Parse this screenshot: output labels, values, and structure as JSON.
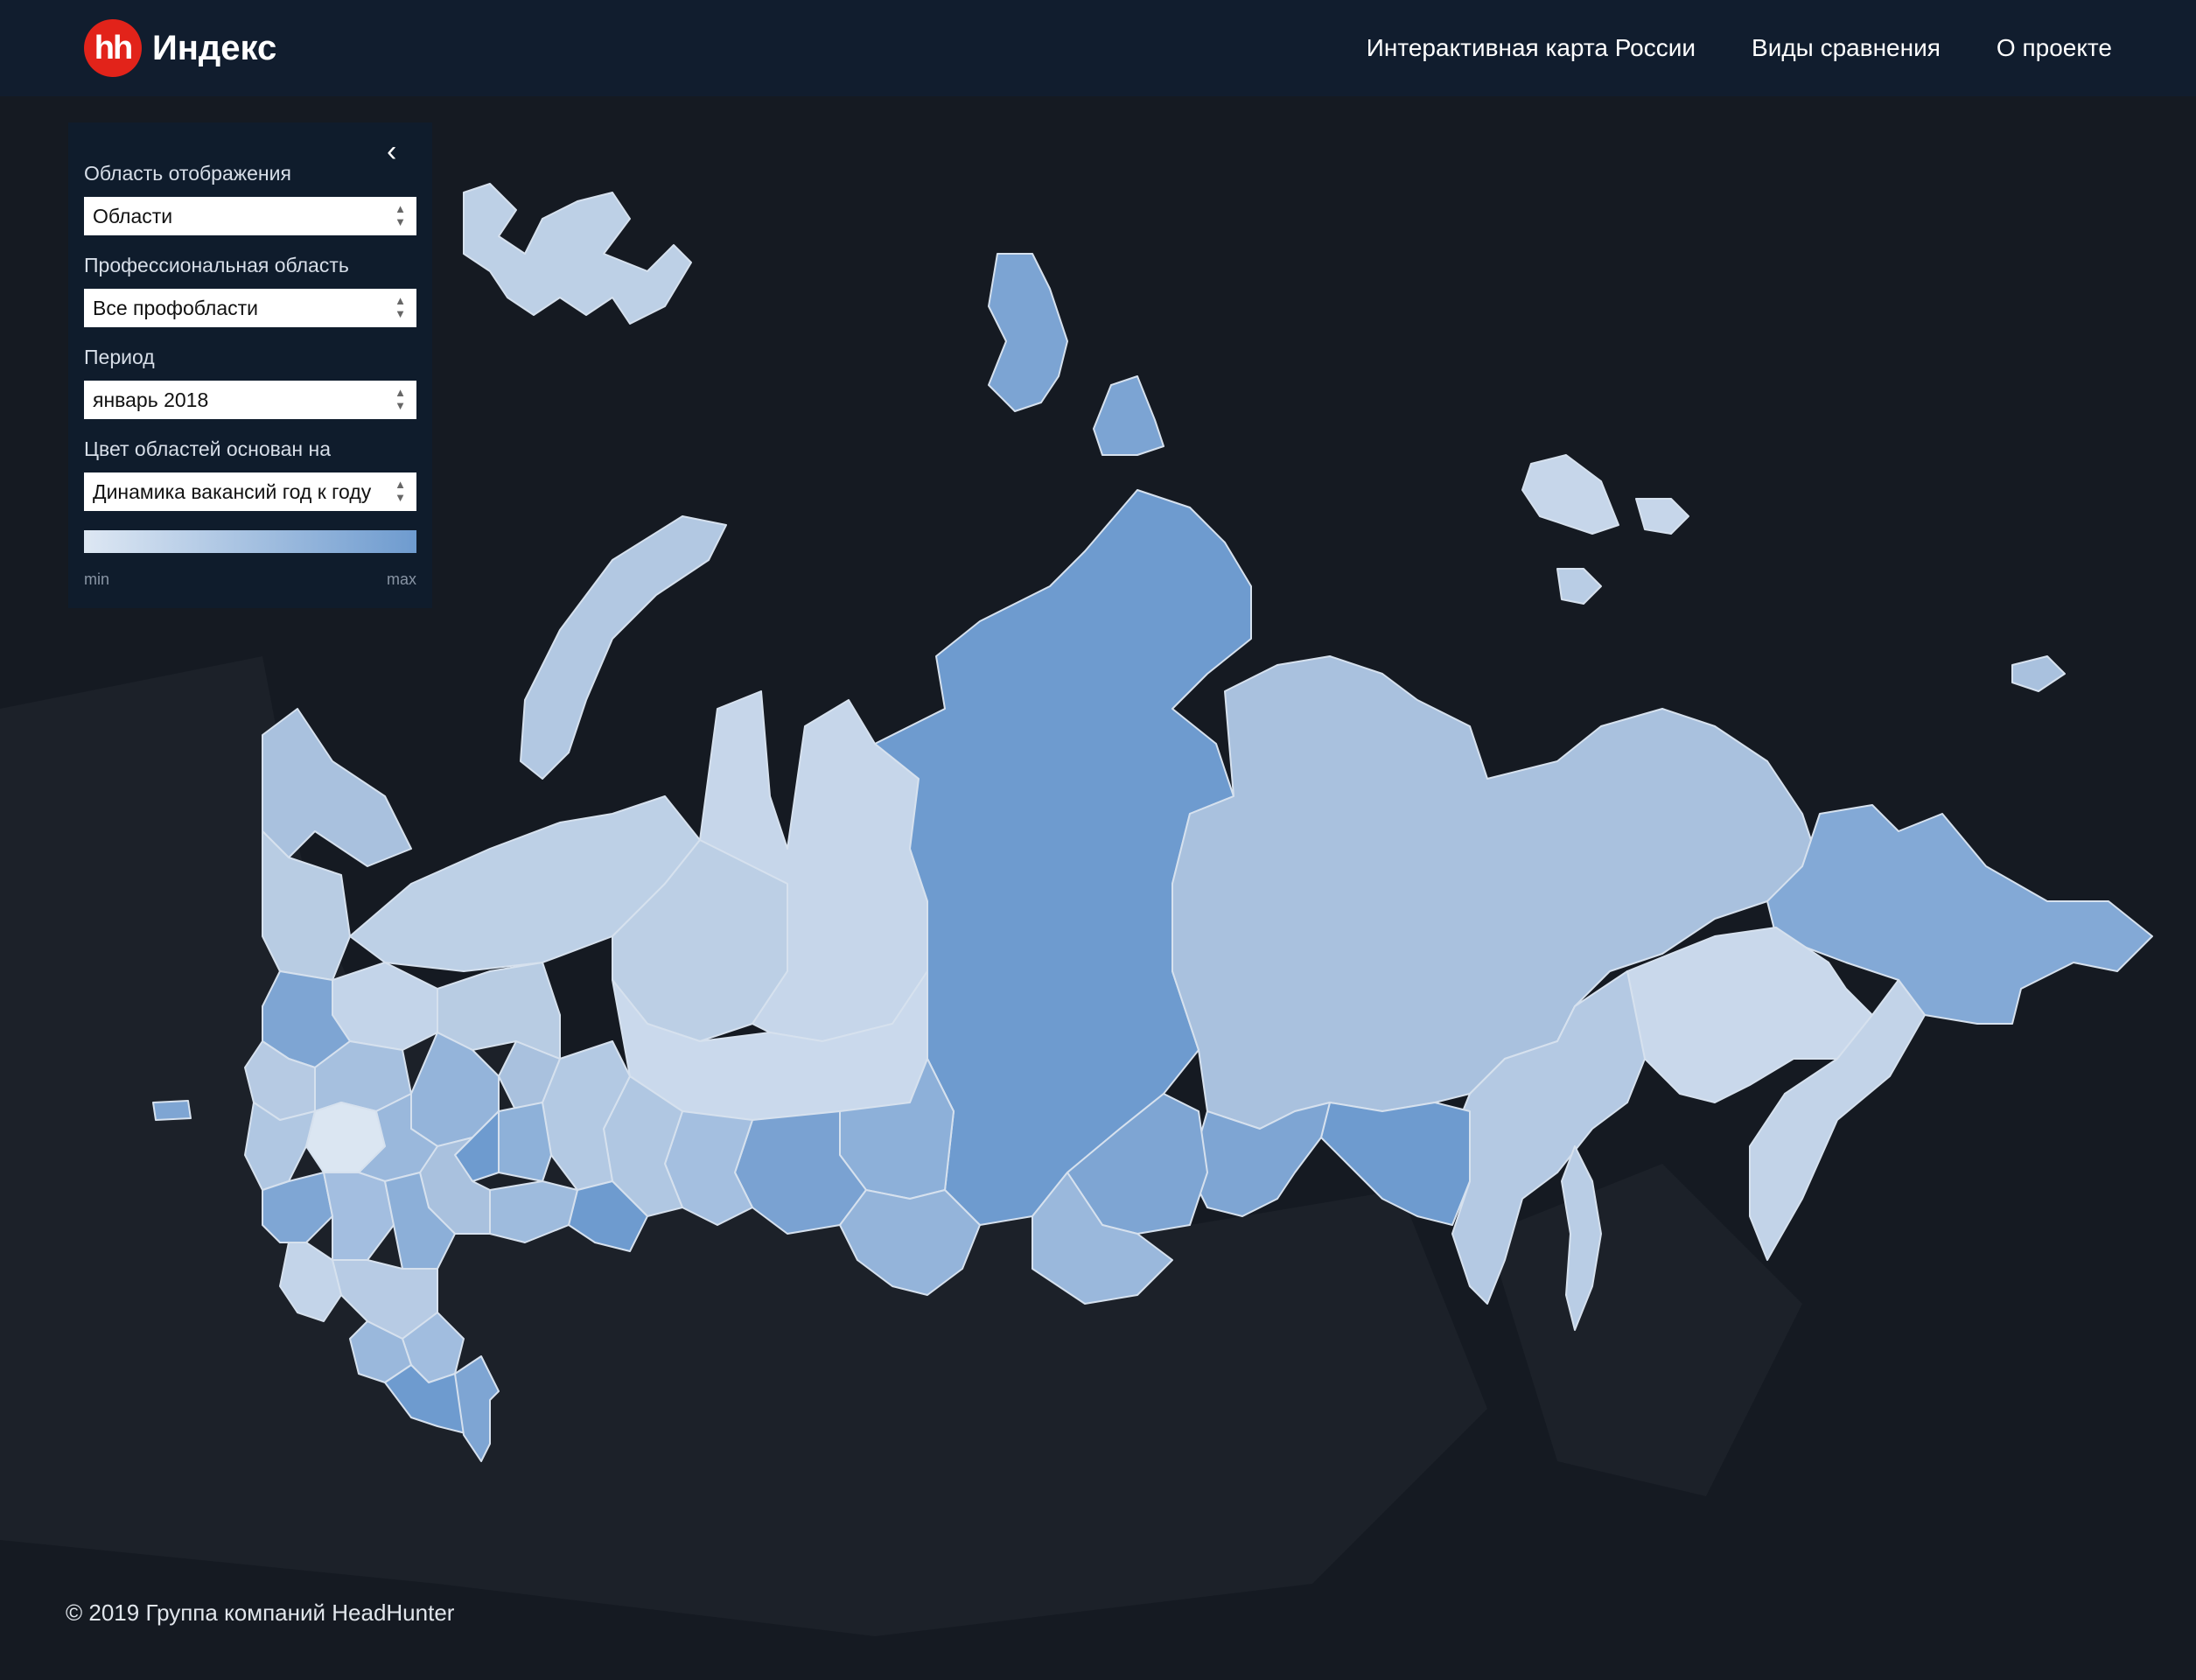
{
  "header": {
    "logo_badge": "hh",
    "logo_text": "Индекс",
    "nav": [
      "Интерактивная карта России",
      "Виды сравнения",
      "О проекте"
    ]
  },
  "panel": {
    "display_area_label": "Область отображения",
    "display_area_value": "Области",
    "prof_area_label": "Профессиональная область",
    "prof_area_value": "Все профобласти",
    "period_label": "Период",
    "period_value": "январь 2018",
    "color_basis_label": "Цвет областей основан на",
    "color_basis_value": "Динамика вакансий год к году",
    "legend_min": "min",
    "legend_max": "max"
  },
  "colors": {
    "header_bg": "#111d2e",
    "page_bg": "#151a22",
    "brand_red": "#e2231a",
    "region_light": "#cfdcec",
    "region_mid": "#a9c1de",
    "region_dark": "#6e9bcf"
  },
  "footer": {
    "copyright": "© 2019 Группа компаний HeadHunter"
  }
}
